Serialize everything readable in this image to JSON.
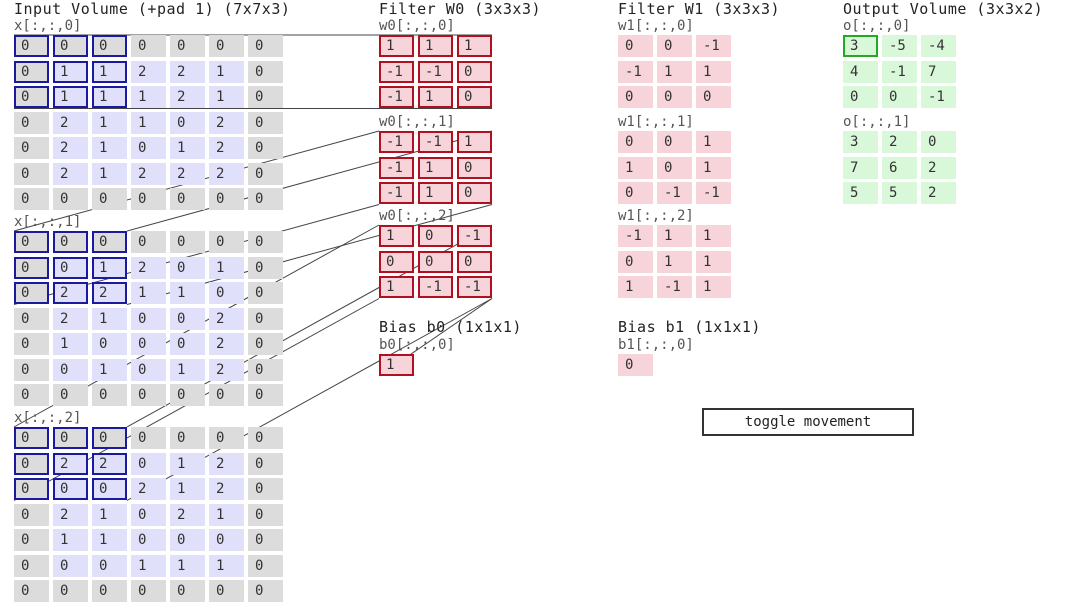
{
  "input": {
    "title": "Input Volume (+pad 1) (7x7x3)",
    "slices": [
      {
        "label": "x[:,:,0]",
        "values": [
          [
            0,
            0,
            0,
            0,
            0,
            0,
            0
          ],
          [
            0,
            1,
            1,
            2,
            2,
            1,
            0
          ],
          [
            0,
            1,
            1,
            1,
            2,
            1,
            0
          ],
          [
            0,
            2,
            1,
            1,
            0,
            2,
            0
          ],
          [
            0,
            2,
            1,
            0,
            1,
            2,
            0
          ],
          [
            0,
            2,
            1,
            2,
            2,
            2,
            0
          ],
          [
            0,
            0,
            0,
            0,
            0,
            0,
            0
          ]
        ]
      },
      {
        "label": "x[:,:,1]",
        "values": [
          [
            0,
            0,
            0,
            0,
            0,
            0,
            0
          ],
          [
            0,
            0,
            1,
            2,
            0,
            1,
            0
          ],
          [
            0,
            2,
            2,
            1,
            1,
            0,
            0
          ],
          [
            0,
            2,
            1,
            0,
            0,
            2,
            0
          ],
          [
            0,
            1,
            0,
            0,
            0,
            2,
            0
          ],
          [
            0,
            0,
            1,
            0,
            1,
            2,
            0
          ],
          [
            0,
            0,
            0,
            0,
            0,
            0,
            0
          ]
        ]
      },
      {
        "label": "x[:,:,2]",
        "values": [
          [
            0,
            0,
            0,
            0,
            0,
            0,
            0
          ],
          [
            0,
            2,
            2,
            0,
            1,
            2,
            0
          ],
          [
            0,
            0,
            0,
            2,
            1,
            2,
            0
          ],
          [
            0,
            2,
            1,
            0,
            2,
            1,
            0
          ],
          [
            0,
            1,
            1,
            0,
            0,
            0,
            0
          ],
          [
            0,
            0,
            0,
            1,
            1,
            1,
            0
          ],
          [
            0,
            0,
            0,
            0,
            0,
            0,
            0
          ]
        ]
      }
    ]
  },
  "filter_w0": {
    "title": "Filter W0 (3x3x3)",
    "slices": [
      {
        "label": "w0[:,:,0]",
        "values": [
          [
            1,
            1,
            1
          ],
          [
            -1,
            -1,
            0
          ],
          [
            -1,
            1,
            0
          ]
        ]
      },
      {
        "label": "w0[:,:,1]",
        "values": [
          [
            -1,
            -1,
            1
          ],
          [
            -1,
            1,
            0
          ],
          [
            -1,
            1,
            0
          ]
        ]
      },
      {
        "label": "w0[:,:,2]",
        "values": [
          [
            1,
            0,
            -1
          ],
          [
            0,
            0,
            0
          ],
          [
            1,
            -1,
            -1
          ]
        ]
      }
    ],
    "bias_title": "Bias b0 (1x1x1)",
    "bias_label": "b0[:,:,0]",
    "bias_value": 1
  },
  "filter_w1": {
    "title": "Filter W1 (3x3x3)",
    "slices": [
      {
        "label": "w1[:,:,0]",
        "values": [
          [
            0,
            0,
            -1
          ],
          [
            -1,
            1,
            1
          ],
          [
            0,
            0,
            0
          ]
        ]
      },
      {
        "label": "w1[:,:,1]",
        "values": [
          [
            0,
            0,
            1
          ],
          [
            1,
            0,
            1
          ],
          [
            0,
            -1,
            -1
          ]
        ]
      },
      {
        "label": "w1[:,:,2]",
        "values": [
          [
            -1,
            1,
            1
          ],
          [
            0,
            1,
            1
          ],
          [
            1,
            -1,
            1
          ]
        ]
      }
    ],
    "bias_title": "Bias b1 (1x1x1)",
    "bias_label": "b1[:,:,0]",
    "bias_value": 0
  },
  "output": {
    "title": "Output Volume (3x3x2)",
    "slices": [
      {
        "label": "o[:,:,0]",
        "values": [
          [
            3,
            -5,
            -4
          ],
          [
            4,
            -1,
            7
          ],
          [
            0,
            0,
            -1
          ]
        ]
      },
      {
        "label": "o[:,:,1]",
        "values": [
          [
            3,
            2,
            0
          ],
          [
            7,
            6,
            2
          ],
          [
            5,
            5,
            2
          ]
        ]
      }
    ],
    "highlighted": {
      "slice": 0,
      "row": 0,
      "col": 0
    }
  },
  "toggle_button": {
    "label": "toggle movement"
  },
  "colors": {
    "window": "#1a1aa0",
    "filter_w0_border": "#b01020",
    "output_highlight": "#22aa22",
    "pad": "#dcdcdc",
    "inner": "#e0e0fb",
    "filter": "#f7d3da",
    "output": "#d9f7d9"
  }
}
